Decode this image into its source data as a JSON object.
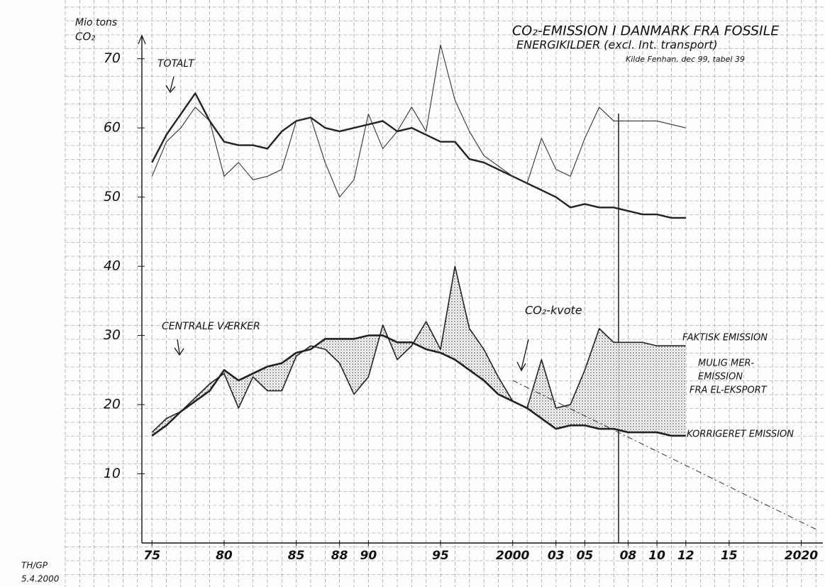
{
  "chart_data": {
    "type": "line",
    "title": [
      "CO₂-EMISSION I DANMARK FRA FOSSILE",
      "ENERGIKILDER (excl. Int. transport)"
    ],
    "source": "Kilde Fenhan, dec 99, tabel 39",
    "y_label": [
      "Mio tons",
      "CO₂"
    ],
    "annotations": {
      "total": "TOTALT",
      "central": "CENTRALE VÆRKER",
      "extra": [
        "MULIG MER-",
        "EMISSION",
        "FRA EL-EKSPORT"
      ]
    },
    "signature": [
      "TH/GP",
      "5.4.2000"
    ],
    "x": [
      1975,
      1976,
      1977,
      1978,
      1979,
      1980,
      1981,
      1982,
      1983,
      1984,
      1985,
      1986,
      1987,
      1988,
      1989,
      1990,
      1991,
      1992,
      1993,
      1994,
      1995,
      1996,
      1997,
      1998,
      1999,
      2000,
      2001,
      2002,
      2003,
      2004,
      2005,
      2006,
      2007,
      2008,
      2009,
      2010,
      2011,
      2012
    ],
    "series": [
      {
        "color": "#222",
        "width": 2.4,
        "values": [
          55,
          59,
          62,
          65,
          61,
          58,
          57.5,
          57.5,
          57,
          59.5,
          61,
          61.5,
          60,
          59.5,
          60,
          60.5,
          61,
          59.5,
          60,
          59,
          58,
          58,
          55.5,
          55,
          54,
          53,
          52,
          51,
          50,
          48.5,
          49,
          48.5,
          48.5,
          48,
          47.5,
          47.5,
          47,
          47
        ]
      },
      {
        "color": "#333",
        "width": 1.1,
        "values": [
          53,
          58,
          60,
          63,
          61,
          53,
          55,
          52.5,
          53,
          54,
          61,
          61.5,
          55,
          50,
          52.5,
          62,
          57,
          59.5,
          63,
          59.5,
          72,
          64,
          59.5,
          56,
          54.5,
          53,
          52,
          58.5,
          54,
          53,
          58.5,
          63,
          61,
          61,
          61,
          61,
          60.5,
          60
        ]
      },
      {
        "name": "FAKTISK EMISSION",
        "color": "#222",
        "width": 1.6,
        "values": [
          16,
          18,
          19,
          21,
          23,
          24.5,
          19.5,
          24,
          22,
          22,
          27,
          28.5,
          28,
          26,
          21.5,
          24,
          31.5,
          26.5,
          28.5,
          32,
          28,
          40,
          31,
          28,
          24,
          20.5,
          19.5,
          26.5,
          19.5,
          20,
          25,
          31,
          29,
          29,
          29,
          28.5,
          28.5,
          28.5
        ]
      },
      {
        "name": "KORRIGERET EMISSION",
        "color": "#222",
        "width": 2.6,
        "values": [
          15.5,
          17,
          19,
          20.5,
          22,
          25,
          23.5,
          24.5,
          25.5,
          26,
          27.5,
          28,
          29.5,
          29.5,
          29.5,
          30,
          30,
          29,
          29,
          28,
          27.5,
          26.5,
          25,
          23.5,
          21.5,
          20.5,
          19.5,
          18,
          16.5,
          17,
          17,
          16.5,
          16.5,
          16,
          16,
          16,
          15.5,
          15.5
        ]
      },
      {
        "name": "CO₂-kvote",
        "color": "#333",
        "width": 1,
        "dash": true,
        "x": [
          2000,
          2021
        ],
        "values": [
          23.5,
          2
        ]
      }
    ],
    "xlim": [
      1974.3,
      2021.5
    ],
    "ylim": [
      0,
      75
    ],
    "xticks": [
      {
        "value": 1975,
        "label": "75"
      },
      {
        "value": 1980,
        "label": "80"
      },
      {
        "value": 1985,
        "label": "85"
      },
      {
        "value": 1988,
        "label": "88"
      },
      {
        "value": 1990,
        "label": "90"
      },
      {
        "value": 1995,
        "label": "95"
      },
      2000,
      {
        "value": 2003,
        "label": "03"
      },
      {
        "value": 2005,
        "label": "05"
      },
      {
        "value": 2008,
        "label": "08"
      },
      {
        "value": 2010,
        "label": "10"
      },
      {
        "value": 2012,
        "label": "12"
      },
      {
        "value": 2015,
        "label": "15"
      },
      2020
    ],
    "yticks": [
      10,
      20,
      30,
      40,
      50,
      60,
      70
    ]
  }
}
